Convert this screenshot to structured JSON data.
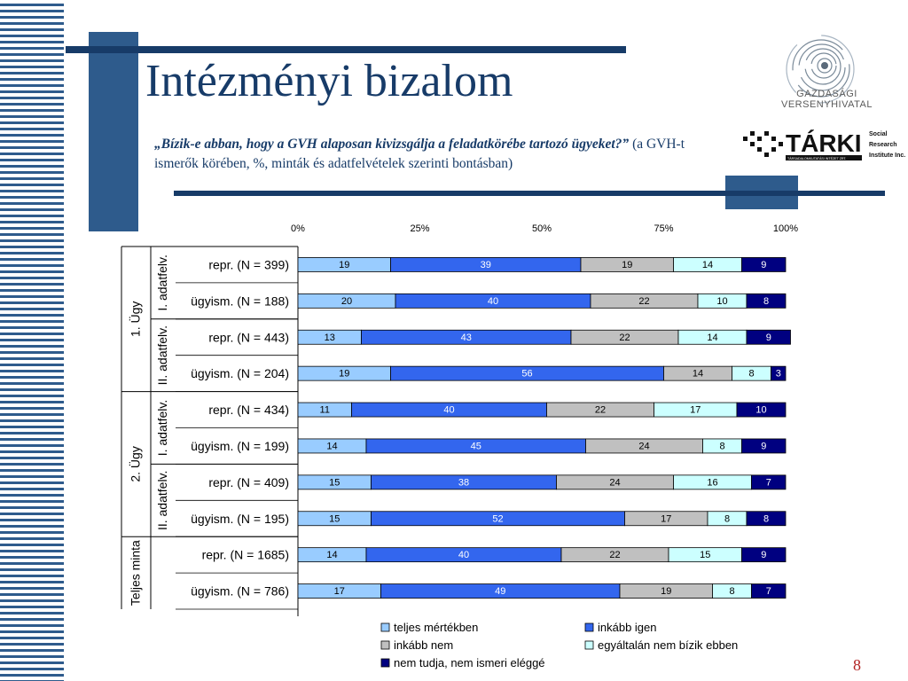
{
  "slide": {
    "title": "Intézményi bizalom",
    "question_italic": "„Bízik-e abban, hogy a GVH alaposan kivizsgálja a feladatkörébe tartozó ügyeket?”",
    "question_note": "(a GVH-t ismerők körében, %,  minták és adatfelvételek szerinti bontásban)",
    "page_number": "8"
  },
  "logos": {
    "gvh_line1": "GAZDASÁGI",
    "gvh_line2": "VERSENYHIVATAL",
    "tarki_name": "TÁRKI",
    "tarki_sub": "TÁRSADALOMKUTATÁSI INTÉZET ZRT.",
    "tarki_side1": "Social",
    "tarki_side2": "Research",
    "tarki_side3": "Institute Inc."
  },
  "chart_data": {
    "type": "bar",
    "orientation": "horizontal",
    "stacked": true,
    "xlim": [
      0,
      100
    ],
    "xticks": [
      "0%",
      "25%",
      "50%",
      "75%",
      "100%"
    ],
    "grid": false,
    "legend_position": "bottom",
    "groups": [
      {
        "label": "1. Ügy",
        "subgroups": [
          {
            "label": "I. adatfelv.",
            "rows": [
              0,
              1
            ]
          },
          {
            "label": "II. adatfelv.",
            "rows": [
              2,
              3
            ]
          }
        ]
      },
      {
        "label": "2. Ügy",
        "subgroups": [
          {
            "label": "I. adatfelv.",
            "rows": [
              4,
              5
            ]
          },
          {
            "label": "II. adatfelv.",
            "rows": [
              6,
              7
            ]
          }
        ]
      },
      {
        "label": "Teljes minta",
        "subgroups": [
          {
            "label": "",
            "rows": [
              8,
              9
            ]
          }
        ]
      }
    ],
    "categories": [
      "repr. (N = 399)",
      "ügyism. (N = 188)",
      "repr. (N = 443)",
      "ügyism. (N = 204)",
      "repr. (N = 434)",
      "ügyism. (N = 199)",
      "repr. (N = 409)",
      "ügyism. (N = 195)",
      "repr. (N = 1685)",
      "ügyism. (N = 786)"
    ],
    "series": [
      {
        "name": "teljes mértékben",
        "color": "#99ccff",
        "values": [
          19,
          20,
          13,
          19,
          11,
          14,
          15,
          15,
          14,
          17
        ]
      },
      {
        "name": "inkább igen",
        "color": "#3366ee",
        "values": [
          39,
          40,
          43,
          56,
          40,
          45,
          38,
          52,
          40,
          49
        ]
      },
      {
        "name": "inkább nem",
        "color": "#c0c0c0",
        "values": [
          19,
          22,
          22,
          14,
          22,
          24,
          24,
          17,
          22,
          19
        ]
      },
      {
        "name": "egyáltalán nem bízik ebben",
        "color": "#ccffff",
        "values": [
          14,
          10,
          14,
          8,
          17,
          8,
          16,
          8,
          15,
          8
        ]
      },
      {
        "name": "nem tudja, nem ismeri eléggé",
        "color": "#000080",
        "values": [
          9,
          8,
          9,
          3,
          10,
          9,
          7,
          8,
          9,
          7
        ]
      }
    ]
  }
}
